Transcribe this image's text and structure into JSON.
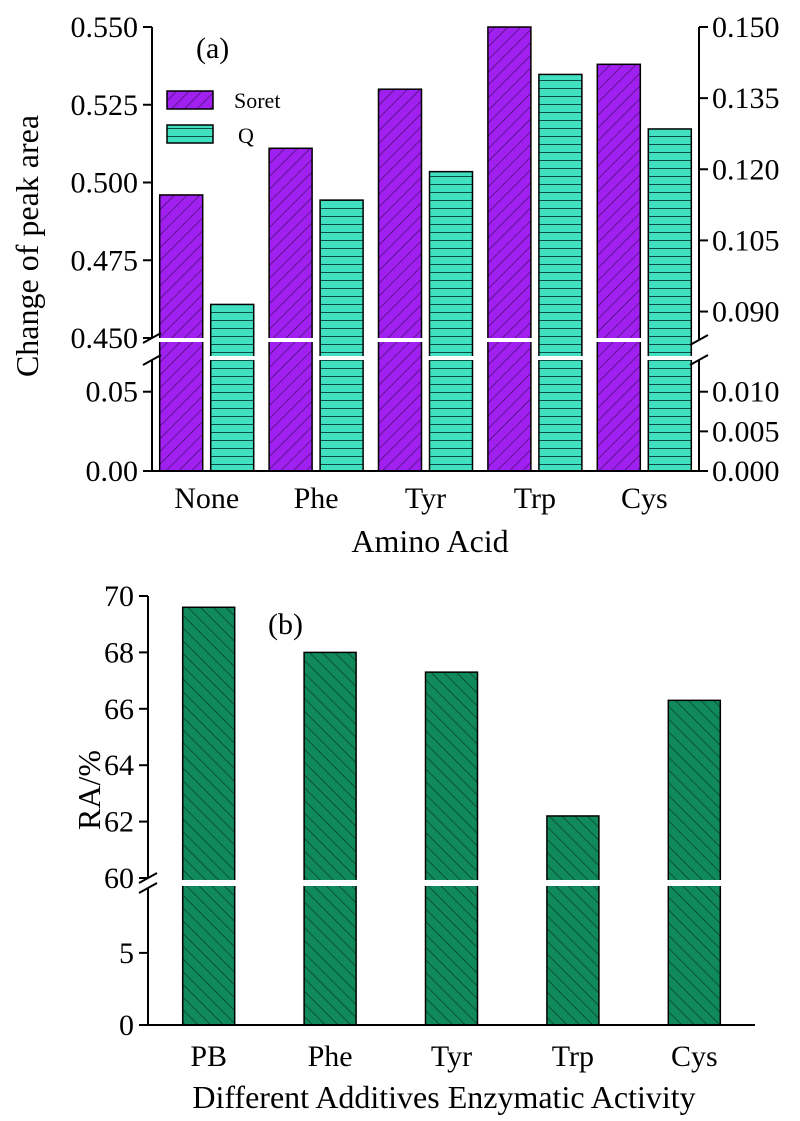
{
  "chart_data": [
    {
      "panel_label": "(a)",
      "type": "bar",
      "categories": [
        "None",
        "Phe",
        "Tyr",
        "Trp",
        "Cys"
      ],
      "series": [
        {
          "name": "Soret",
          "axis": "left",
          "values": [
            0.496,
            0.511,
            0.53,
            0.55,
            0.538
          ]
        },
        {
          "name": "Q",
          "axis": "right",
          "values": [
            0.0915,
            0.1135,
            0.1195,
            0.14,
            0.1285
          ]
        }
      ],
      "xlabel": "Amino Acid",
      "ylabel": "Change of peak area",
      "y_left": {
        "upper_range": [
          0.45,
          0.55
        ],
        "lower_range": [
          0,
          0.07
        ],
        "upper_ticks": [
          "0.450",
          "0.475",
          "0.500",
          "0.525",
          "0.550"
        ],
        "lower_ticks": [
          "0.00",
          "0.05"
        ],
        "axis_break": true
      },
      "y_right": {
        "upper_range": [
          0.084,
          0.15
        ],
        "lower_range": [
          0,
          0.014
        ],
        "upper_ticks": [
          "0.090",
          "0.105",
          "0.120",
          "0.135",
          "0.150"
        ],
        "lower_ticks": [
          "0.000",
          "0.005",
          "0.010"
        ],
        "axis_break": true
      },
      "legend_position": "top-left",
      "colors": {
        "Soret": "#a020f0",
        "Q": "#40e0c0"
      }
    },
    {
      "panel_label": "(b)",
      "type": "bar",
      "categories": [
        "PB",
        "Phe",
        "Tyr",
        "Trp",
        "Cys"
      ],
      "series": [
        {
          "values": [
            69.6,
            68.0,
            67.3,
            62.2,
            66.3
          ]
        }
      ],
      "xlabel": "Different Additives Enzymatic Activity",
      "ylabel": "RA/%",
      "y_axis": {
        "upper_range": [
          60,
          70
        ],
        "lower_range": [
          0,
          9.5
        ],
        "upper_ticks": [
          "60",
          "62",
          "64",
          "66",
          "68",
          "70"
        ],
        "lower_ticks": [
          "0",
          "5"
        ],
        "axis_break": true
      },
      "colors": {
        "bar": "#108a5c"
      }
    }
  ]
}
